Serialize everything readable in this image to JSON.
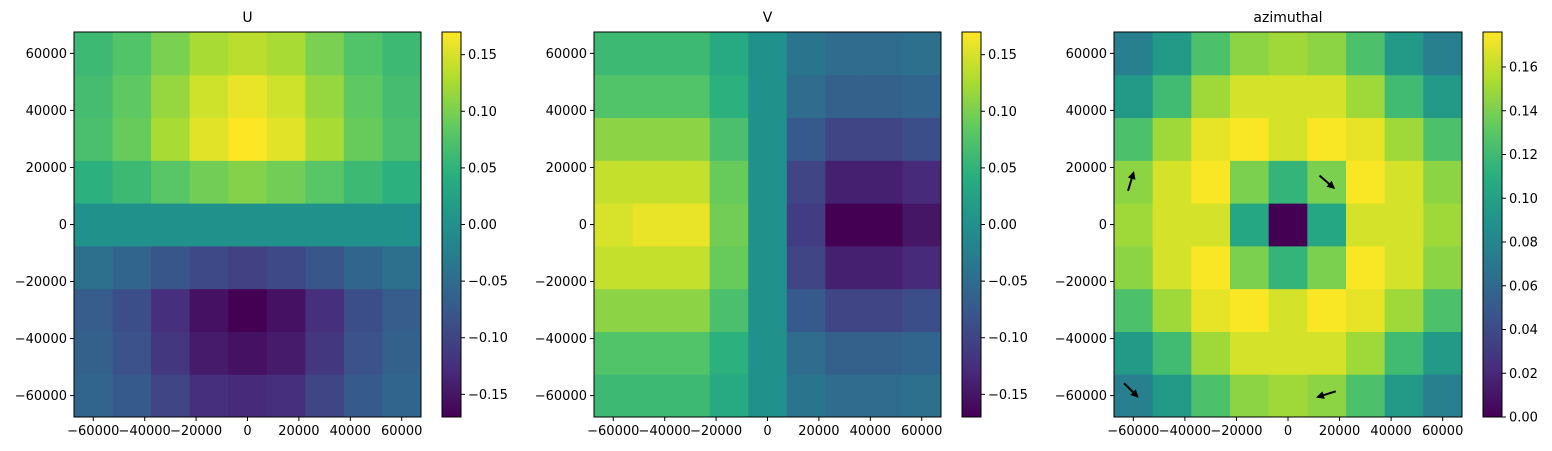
{
  "chart_data": [
    {
      "type": "heatmap",
      "title": "U",
      "x": [
        -60000,
        -45000,
        -30000,
        -15000,
        0,
        15000,
        30000,
        45000,
        60000
      ],
      "y": [
        -60000,
        -45000,
        -30000,
        -15000,
        0,
        15000,
        30000,
        45000,
        60000
      ],
      "xlim": [
        -67500,
        67500
      ],
      "ylim": [
        -67500,
        67500
      ],
      "xticks": [
        -60000,
        -40000,
        -20000,
        0,
        20000,
        40000,
        60000
      ],
      "yticks": [
        -60000,
        -40000,
        -20000,
        0,
        20000,
        40000,
        60000
      ],
      "colormap": "viridis",
      "vmin": -0.17,
      "vmax": 0.17,
      "colorbar_ticks": [
        -0.15,
        -0.1,
        -0.05,
        0.0,
        0.05,
        0.1,
        0.15
      ],
      "colorbar_tick_labels": [
        "−0.15",
        "−0.10",
        "−0.05",
        "0.00",
        "0.05",
        "0.10",
        "0.15"
      ],
      "values": [
        [
          -0.06,
          -0.075,
          -0.1,
          -0.125,
          -0.13,
          -0.125,
          -0.1,
          -0.075,
          -0.06
        ],
        [
          -0.065,
          -0.085,
          -0.115,
          -0.145,
          -0.155,
          -0.145,
          -0.115,
          -0.085,
          -0.065
        ],
        [
          -0.07,
          -0.09,
          -0.125,
          -0.155,
          -0.17,
          -0.155,
          -0.125,
          -0.09,
          -0.07
        ],
        [
          -0.045,
          -0.06,
          -0.08,
          -0.095,
          -0.105,
          -0.095,
          -0.08,
          -0.06,
          -0.045
        ],
        [
          0.0,
          0.0,
          0.0,
          0.0,
          0.0,
          0.0,
          0.0,
          0.0,
          0.0
        ],
        [
          0.045,
          0.06,
          0.08,
          0.095,
          0.105,
          0.095,
          0.08,
          0.06,
          0.045
        ],
        [
          0.07,
          0.09,
          0.125,
          0.155,
          0.17,
          0.155,
          0.125,
          0.09,
          0.07
        ],
        [
          0.065,
          0.085,
          0.115,
          0.145,
          0.16,
          0.145,
          0.115,
          0.085,
          0.065
        ],
        [
          0.06,
          0.075,
          0.1,
          0.125,
          0.135,
          0.125,
          0.1,
          0.075,
          0.06
        ]
      ]
    },
    {
      "type": "heatmap",
      "title": "V",
      "x": [
        -60000,
        -45000,
        -30000,
        -15000,
        0,
        15000,
        30000,
        45000,
        60000
      ],
      "y": [
        -60000,
        -45000,
        -30000,
        -15000,
        0,
        15000,
        30000,
        45000,
        60000
      ],
      "xlim": [
        -67500,
        67500
      ],
      "ylim": [
        -67500,
        67500
      ],
      "xticks": [
        -60000,
        -40000,
        -20000,
        0,
        20000,
        40000,
        60000
      ],
      "yticks": [
        -60000,
        -40000,
        -20000,
        0,
        20000,
        40000,
        60000
      ],
      "colormap": "viridis",
      "vmin": -0.17,
      "vmax": 0.17,
      "colorbar_ticks": [
        -0.15,
        -0.1,
        -0.05,
        0.0,
        0.05,
        0.1,
        0.15
      ],
      "colorbar_tick_labels": [
        "−0.15",
        "−0.10",
        "−0.05",
        "0.00",
        "0.05",
        "0.10",
        "0.15"
      ],
      "values": [
        [
          0.06,
          0.06,
          0.06,
          0.035,
          0.0,
          -0.04,
          -0.05,
          -0.05,
          -0.045
        ],
        [
          0.075,
          0.075,
          0.075,
          0.045,
          0.0,
          -0.05,
          -0.065,
          -0.065,
          -0.06
        ],
        [
          0.11,
          0.11,
          0.11,
          0.07,
          0.0,
          -0.075,
          -0.1,
          -0.1,
          -0.09
        ],
        [
          0.14,
          0.14,
          0.14,
          0.09,
          0.0,
          -0.1,
          -0.14,
          -0.14,
          -0.13
        ],
        [
          0.15,
          0.16,
          0.16,
          0.095,
          0.0,
          -0.11,
          -0.17,
          -0.17,
          -0.15
        ],
        [
          0.14,
          0.14,
          0.14,
          0.09,
          0.0,
          -0.1,
          -0.14,
          -0.14,
          -0.13
        ],
        [
          0.11,
          0.11,
          0.11,
          0.07,
          0.0,
          -0.075,
          -0.1,
          -0.1,
          -0.09
        ],
        [
          0.075,
          0.075,
          0.075,
          0.045,
          0.0,
          -0.05,
          -0.065,
          -0.065,
          -0.06
        ],
        [
          0.06,
          0.06,
          0.06,
          0.035,
          0.0,
          -0.04,
          -0.05,
          -0.05,
          -0.045
        ]
      ]
    },
    {
      "type": "heatmap",
      "title": "azimuthal",
      "x": [
        -60000,
        -45000,
        -30000,
        -15000,
        0,
        15000,
        30000,
        45000,
        60000
      ],
      "y": [
        -60000,
        -45000,
        -30000,
        -15000,
        0,
        15000,
        30000,
        45000,
        60000
      ],
      "xlim": [
        -67500,
        67500
      ],
      "ylim": [
        -67500,
        67500
      ],
      "xticks": [
        -60000,
        -40000,
        -20000,
        0,
        20000,
        40000,
        60000
      ],
      "yticks": [
        -60000,
        -40000,
        -20000,
        0,
        20000,
        40000,
        60000
      ],
      "colormap": "viridis",
      "vmin": 0.0,
      "vmax": 0.176,
      "colorbar_ticks": [
        0.0,
        0.02,
        0.04,
        0.06,
        0.08,
        0.1,
        0.12,
        0.14,
        0.16
      ],
      "colorbar_tick_labels": [
        "0.00",
        "0.02",
        "0.04",
        "0.06",
        "0.08",
        "0.10",
        "0.12",
        "0.14",
        "0.16"
      ],
      "values": [
        [
          0.075,
          0.095,
          0.125,
          0.145,
          0.15,
          0.145,
          0.125,
          0.095,
          0.075
        ],
        [
          0.095,
          0.12,
          0.15,
          0.165,
          0.165,
          0.165,
          0.15,
          0.12,
          0.095
        ],
        [
          0.125,
          0.15,
          0.17,
          0.175,
          0.165,
          0.175,
          0.17,
          0.15,
          0.125
        ],
        [
          0.145,
          0.165,
          0.175,
          0.14,
          0.115,
          0.14,
          0.175,
          0.165,
          0.145
        ],
        [
          0.15,
          0.165,
          0.165,
          0.105,
          0.0,
          0.105,
          0.165,
          0.165,
          0.15
        ],
        [
          0.145,
          0.165,
          0.175,
          0.14,
          0.115,
          0.14,
          0.175,
          0.165,
          0.145
        ],
        [
          0.125,
          0.15,
          0.17,
          0.175,
          0.165,
          0.175,
          0.17,
          0.15,
          0.125
        ],
        [
          0.095,
          0.12,
          0.15,
          0.165,
          0.165,
          0.165,
          0.15,
          0.12,
          0.095
        ],
        [
          0.075,
          0.095,
          0.125,
          0.145,
          0.15,
          0.145,
          0.125,
          0.095,
          0.075
        ]
      ],
      "arrows": [
        {
          "x": -61000,
          "y": 15000,
          "u": 0.3,
          "v": 1.0
        },
        {
          "x": 15000,
          "y": 15000,
          "u": 0.75,
          "v": -0.65
        },
        {
          "x": -61000,
          "y": -58000,
          "u": 0.7,
          "v": -0.7
        },
        {
          "x": 15000,
          "y": -59500,
          "u": -0.95,
          "v": -0.3
        }
      ]
    }
  ]
}
